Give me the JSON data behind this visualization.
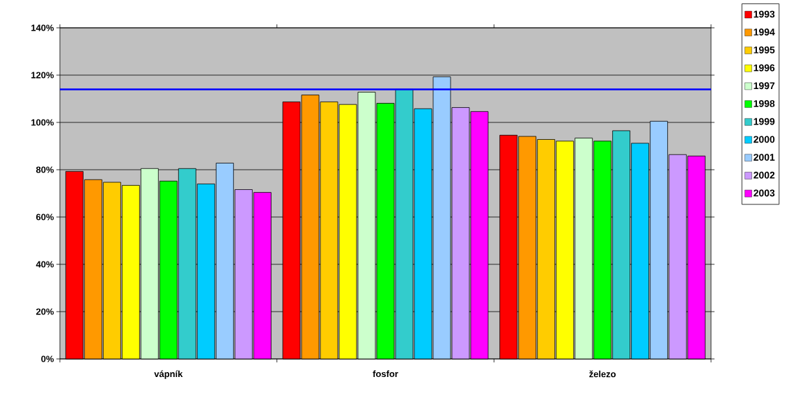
{
  "chart_data": {
    "type": "bar",
    "categories": [
      "vápník",
      "fosfor",
      "železo"
    ],
    "series": [
      {
        "name": "1993",
        "color": "#ff0000",
        "values": [
          79.3,
          108.7,
          94.6
        ]
      },
      {
        "name": "1994",
        "color": "#ff9900",
        "values": [
          75.8,
          111.6,
          94.1
        ]
      },
      {
        "name": "1995",
        "color": "#ffcc00",
        "values": [
          74.7,
          108.7,
          92.8
        ]
      },
      {
        "name": "1996",
        "color": "#ffff00",
        "values": [
          73.4,
          107.6,
          92.1
        ]
      },
      {
        "name": "1997",
        "color": "#ccffcc",
        "values": [
          80.5,
          112.8,
          93.4
        ]
      },
      {
        "name": "1998",
        "color": "#00ff00",
        "values": [
          75.2,
          108.1,
          92.1
        ]
      },
      {
        "name": "1999",
        "color": "#33cccc",
        "values": [
          80.5,
          114.0,
          96.5
        ]
      },
      {
        "name": "2000",
        "color": "#00ccff",
        "values": [
          74.0,
          105.8,
          91.2
        ]
      },
      {
        "name": "2001",
        "color": "#99ccff",
        "values": [
          82.8,
          119.3,
          100.5
        ]
      },
      {
        "name": "2002",
        "color": "#cc99ff",
        "values": [
          71.6,
          106.3,
          86.4
        ]
      },
      {
        "name": "2003",
        "color": "#ff00ff",
        "values": [
          70.4,
          104.6,
          85.8
        ]
      }
    ],
    "ylim": [
      0,
      140
    ],
    "yticks": [
      {
        "value": 0,
        "label": "0%"
      },
      {
        "value": 20,
        "label": "20%"
      },
      {
        "value": 40,
        "label": "40%"
      },
      {
        "value": 60,
        "label": "60%"
      },
      {
        "value": 80,
        "label": "80%"
      },
      {
        "value": 100,
        "label": "100%"
      },
      {
        "value": 120,
        "label": "120%"
      },
      {
        "value": 140,
        "label": "140%"
      }
    ],
    "grid": "y",
    "legend": "right",
    "ref_lines": [
      {
        "axis": "y",
        "value": 114,
        "color": "#0000ff"
      }
    ]
  }
}
